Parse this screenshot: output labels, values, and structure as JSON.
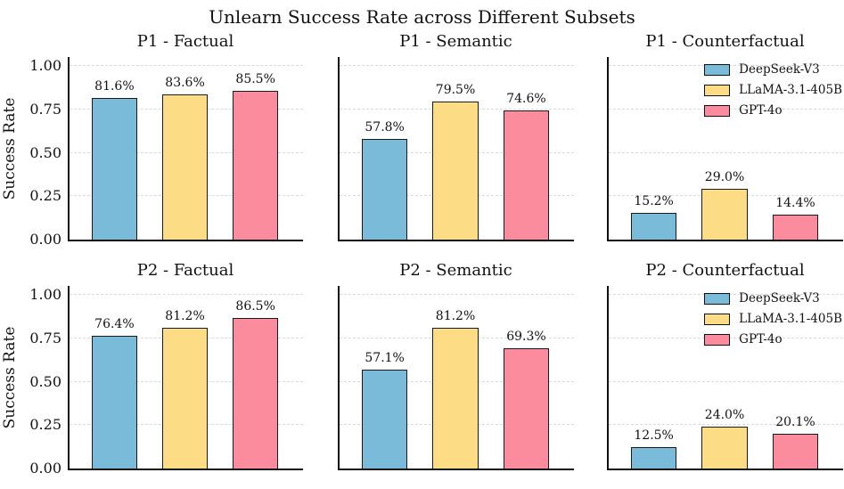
{
  "figure": {
    "title": "Unlearn Success Rate across Different Subsets",
    "ylabel": "Success Rate",
    "background_color": "#ffffff",
    "axis_color": "#111111",
    "grid_color": "#d9d9d9",
    "bar_edge_color": "#1a1a1a",
    "series": [
      {
        "name": "DeepSeek-V3",
        "color": "#7ABBD9"
      },
      {
        "name": "LLaMA-3.1-405B",
        "color": "#FDDC86"
      },
      {
        "name": "GPT-4o",
        "color": "#FA8C9D"
      }
    ],
    "yticks": [
      {
        "label": "0.00",
        "value": 0
      },
      {
        "label": "0.25",
        "value": 0.25
      },
      {
        "label": "0.50",
        "value": 0.5
      },
      {
        "label": "0.75",
        "value": 0.75
      },
      {
        "label": "1.00",
        "value": 1.0
      }
    ],
    "ylim": [
      0,
      1.05
    ],
    "grid": true,
    "legend_position": "upper right"
  },
  "chart_data": [
    {
      "type": "bar",
      "title": "P1 - Factual",
      "categories": [
        "DeepSeek-V3",
        "LLaMA-3.1-405B",
        "GPT-4o"
      ],
      "values": [
        0.816,
        0.836,
        0.855
      ],
      "bar_labels": [
        "81.6%",
        "83.6%",
        "85.5%"
      ],
      "ylabel": "Success Rate",
      "show_yaxis": true,
      "legend": false
    },
    {
      "type": "bar",
      "title": "P1 - Semantic",
      "categories": [
        "DeepSeek-V3",
        "LLaMA-3.1-405B",
        "GPT-4o"
      ],
      "values": [
        0.578,
        0.795,
        0.746
      ],
      "bar_labels": [
        "57.8%",
        "79.5%",
        "74.6%"
      ],
      "show_yaxis": false,
      "legend": false
    },
    {
      "type": "bar",
      "title": "P1 - Counterfactual",
      "categories": [
        "DeepSeek-V3",
        "LLaMA-3.1-405B",
        "GPT-4o"
      ],
      "values": [
        0.152,
        0.29,
        0.144
      ],
      "bar_labels": [
        "15.2%",
        "29.0%",
        "14.4%"
      ],
      "show_yaxis": false,
      "legend": true
    },
    {
      "type": "bar",
      "title": "P2 - Factual",
      "categories": [
        "DeepSeek-V3",
        "LLaMA-3.1-405B",
        "GPT-4o"
      ],
      "values": [
        0.764,
        0.812,
        0.865
      ],
      "bar_labels": [
        "76.4%",
        "81.2%",
        "86.5%"
      ],
      "ylabel": "Success Rate",
      "show_yaxis": true,
      "legend": false
    },
    {
      "type": "bar",
      "title": "P2 - Semantic",
      "categories": [
        "DeepSeek-V3",
        "LLaMA-3.1-405B",
        "GPT-4o"
      ],
      "values": [
        0.571,
        0.812,
        0.693
      ],
      "bar_labels": [
        "57.1%",
        "81.2%",
        "69.3%"
      ],
      "show_yaxis": false,
      "legend": false
    },
    {
      "type": "bar",
      "title": "P2 - Counterfactual",
      "categories": [
        "DeepSeek-V3",
        "LLaMA-3.1-405B",
        "GPT-4o"
      ],
      "values": [
        0.125,
        0.24,
        0.201
      ],
      "bar_labels": [
        "12.5%",
        "24.0%",
        "20.1%"
      ],
      "show_yaxis": false,
      "legend": true
    }
  ]
}
